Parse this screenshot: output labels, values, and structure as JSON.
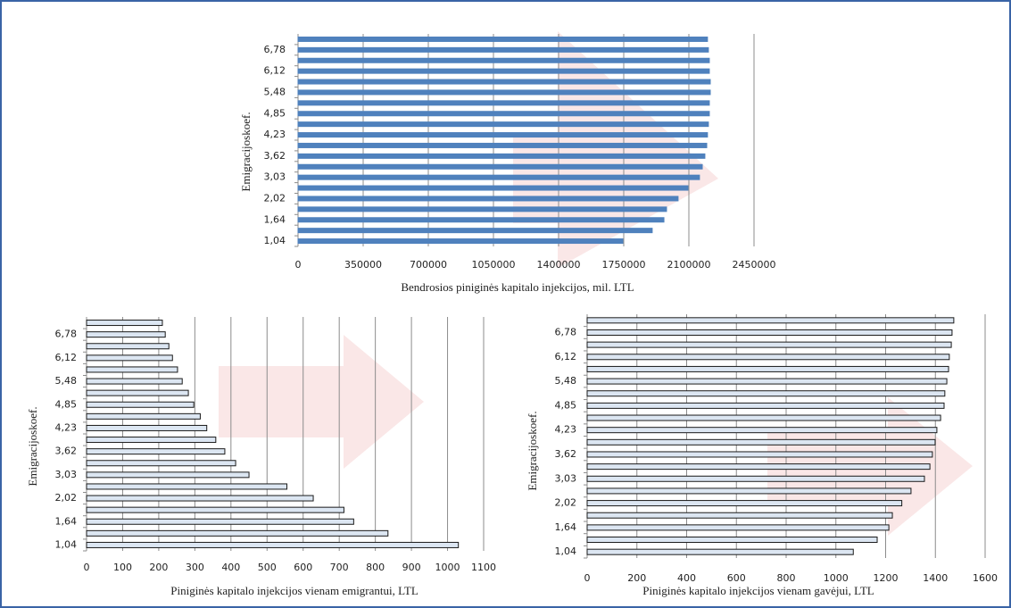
{
  "chart_data": [
    {
      "type": "barh",
      "xlabel": "Bendrosios piniginės kapitalo injekcijos, mil. LTL",
      "ylabel": "Emigracijoskoef.",
      "categories": [
        "1,04",
        null,
        "1,64",
        null,
        "2,02",
        null,
        "3,03",
        null,
        "3,62",
        null,
        "4,23",
        null,
        "4,85",
        null,
        "5,48",
        null,
        "6,12",
        null,
        "6,78",
        null
      ],
      "values": [
        1745000,
        1903000,
        1966000,
        1980000,
        2042000,
        2095000,
        2157000,
        2172000,
        2186000,
        2196000,
        2200000,
        2205000,
        2210000,
        2210000,
        2215000,
        2215000,
        2210000,
        2210000,
        2205000,
        2200000
      ],
      "color": "#4f81bd",
      "edgecolor": "#4f81bd",
      "xlim": [
        0,
        2450000
      ],
      "xticks": [
        0,
        350000,
        700000,
        1050000,
        1400000,
        1750000,
        2100000,
        2450000
      ],
      "grid": true
    },
    {
      "type": "barh",
      "xlabel": "Piniginės kapitalo injekcijos vienam emigrantui, LTL",
      "ylabel": "Emigracijoskoef.",
      "categories": [
        "1,04",
        null,
        "1,64",
        null,
        "2,02",
        null,
        "3,03",
        null,
        "3,62",
        null,
        "4,23",
        null,
        "4,85",
        null,
        "5,48",
        null,
        "6,12",
        null,
        "6,78",
        null
      ],
      "values": [
        1030,
        835,
        740,
        713,
        628,
        555,
        450,
        413,
        383,
        358,
        333,
        315,
        297,
        282,
        265,
        252,
        238,
        228,
        218,
        210
      ],
      "color": "#dce6f2",
      "edgecolor": "#1a1a1a",
      "xlim": [
        0,
        1100
      ],
      "xticks": [
        0,
        100,
        200,
        300,
        400,
        500,
        600,
        700,
        800,
        900,
        1000,
        1100
      ],
      "grid": true
    },
    {
      "type": "barh",
      "xlabel": "Piniginės kapitalo injekcijos vienam gavėjui, LTL",
      "ylabel": "Emigracijoskoef.",
      "categories": [
        "1,04",
        null,
        "1,64",
        null,
        "2,02",
        null,
        "3,03",
        null,
        "3,62",
        null,
        "4,23",
        null,
        "4,85",
        null,
        "5,48",
        null,
        "6,12",
        null,
        "6,78",
        null
      ],
      "values": [
        1070,
        1166,
        1213,
        1227,
        1265,
        1302,
        1356,
        1378,
        1388,
        1399,
        1406,
        1421,
        1435,
        1438,
        1446,
        1453,
        1456,
        1464,
        1467,
        1474
      ],
      "color": "#dce6f2",
      "edgecolor": "#1a1a1a",
      "xlim": [
        0,
        1600
      ],
      "xticks": [
        0,
        200,
        400,
        600,
        800,
        1000,
        1200,
        1400,
        1600
      ],
      "grid": true
    }
  ]
}
